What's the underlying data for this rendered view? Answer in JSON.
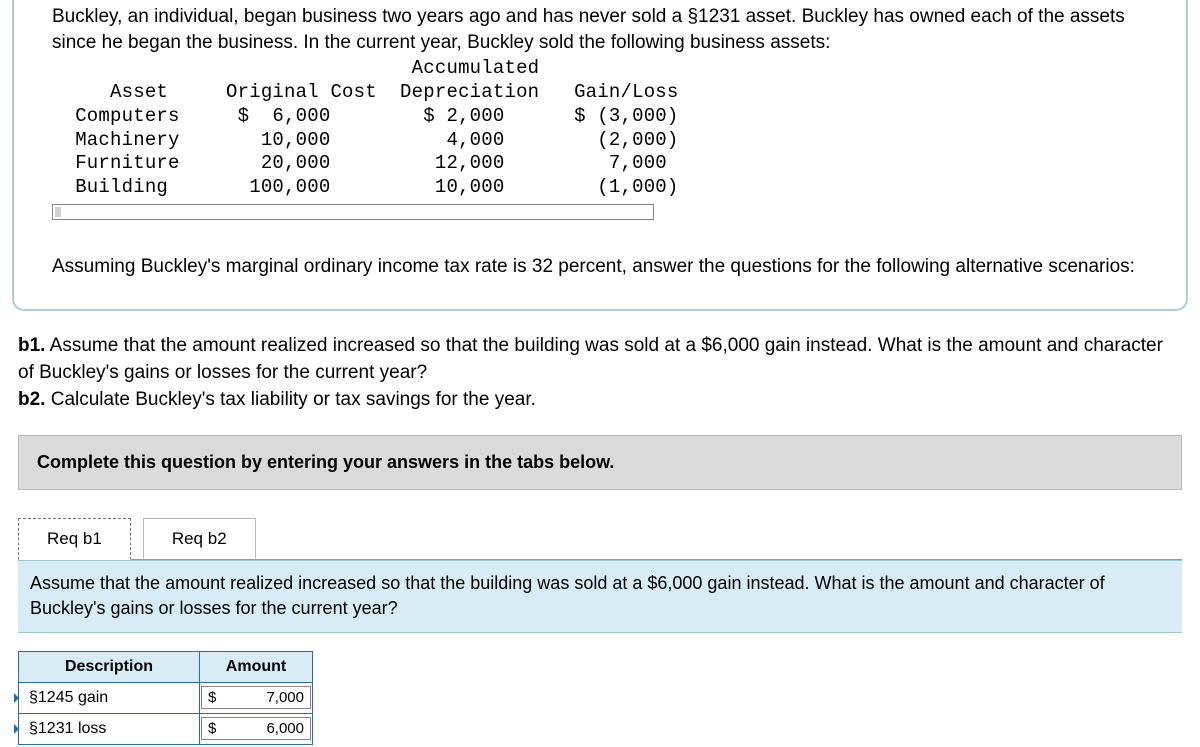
{
  "intro": "Buckley, an individual, began business two years ago and has never sold a §1231 asset. Buckley has owned each of the assets since he began the business. In the current year, Buckley sold the following business assets:",
  "data_table": {
    "headers": [
      "Asset",
      "Original Cost",
      "Accumulated\nDepreciation",
      "Gain/Loss"
    ],
    "rows": [
      {
        "asset": "Computers",
        "cost": "$  6,000",
        "dep": "$ 2,000",
        "gl": "$ (3,000)"
      },
      {
        "asset": "Machinery",
        "cost": "10,000",
        "dep": "4,000",
        "gl": "(2,000)"
      },
      {
        "asset": "Furniture",
        "cost": "20,000",
        "dep": "12,000",
        "gl": "7,000"
      },
      {
        "asset": "Building",
        "cost": "100,000",
        "dep": "10,000",
        "gl": "(1,000)"
      }
    ]
  },
  "assume": "Assuming Buckley's marginal ordinary income tax rate is 32 percent, answer the questions for the following alternative scenarios:",
  "q_b1_label": "b1.",
  "q_b1_text": " Assume that the amount realized increased so that the building was sold at a $6,000 gain instead. What is the amount and character of Buckley's gains or losses for the current year?",
  "q_b2_label": "b2.",
  "q_b2_text": " Calculate Buckley's tax liability or tax savings for the year.",
  "instruction": "Complete this question by entering your answers in the tabs below.",
  "tabs": {
    "t1": "Req b1",
    "t2": "Req b2"
  },
  "sub_question": "Assume that the amount realized increased so that the building was sold at a $6,000 gain instead. What is the amount and character of Buckley's gains or losses for the current year?",
  "answer_table": {
    "headers": {
      "c1": "Description",
      "c2": "Amount"
    },
    "rows": [
      {
        "desc": "§1245 gain",
        "sym": "$",
        "val": "7,000"
      },
      {
        "desc": "§1231 loss",
        "sym": "$",
        "val": "6,000"
      }
    ]
  },
  "colors": {
    "border_blue": "#2b6ca3",
    "light_blue": "#d7ecf5",
    "box_border": "#b0cde0",
    "grey_bar": "#dadada"
  }
}
